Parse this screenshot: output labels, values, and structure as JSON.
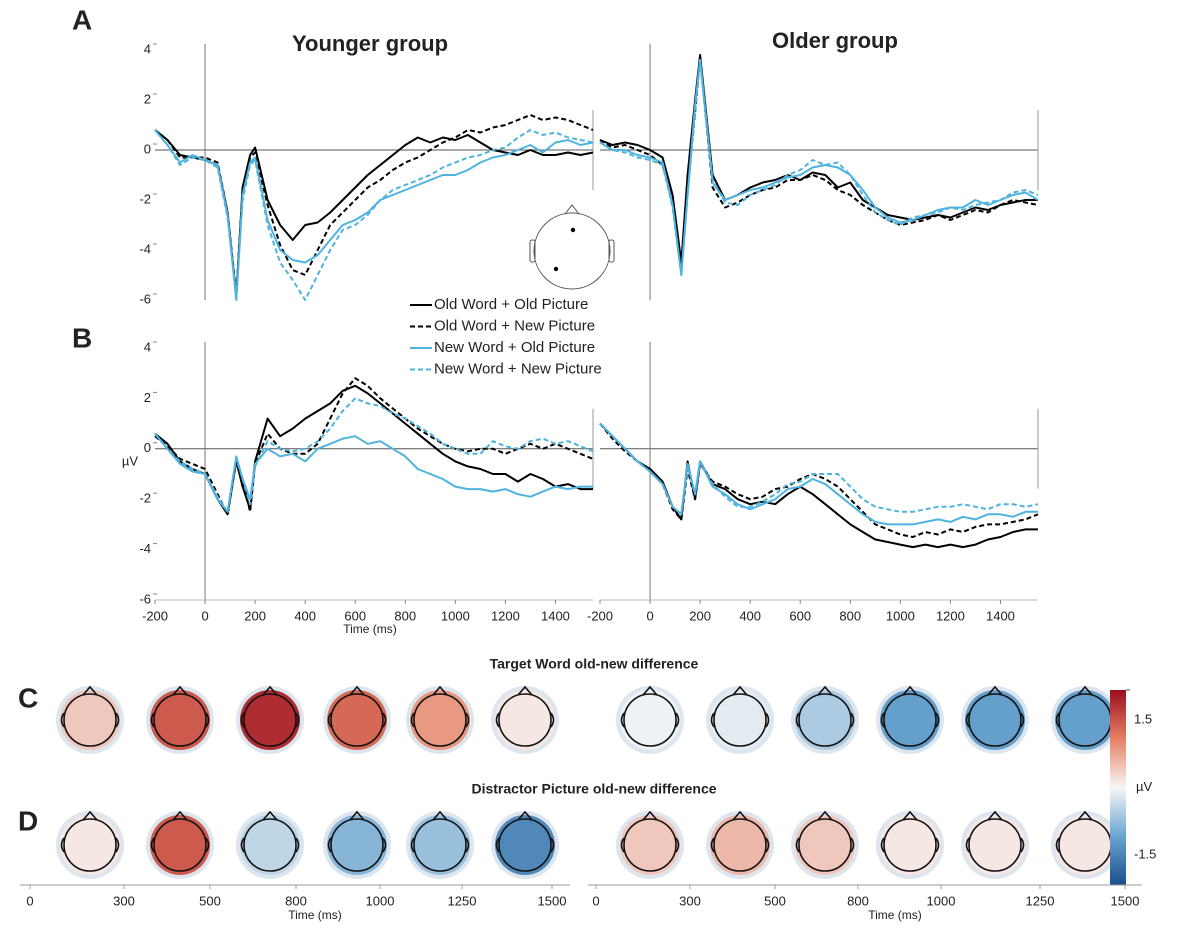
{
  "panel_labels": [
    "A",
    "B",
    "C",
    "D"
  ],
  "chart_data": [
    {
      "type": "line",
      "title": "Younger group",
      "x": [
        -200,
        -150,
        -100,
        -50,
        0,
        50,
        90,
        125,
        150,
        180,
        200,
        250,
        300,
        350,
        400,
        450,
        500,
        550,
        600,
        650,
        700,
        750,
        800,
        850,
        900,
        950,
        1000,
        1050,
        1100,
        1150,
        1200,
        1250,
        1300,
        1350,
        1400,
        1450,
        1500,
        1550
      ],
      "xlim": [
        -200,
        1550
      ],
      "ylim": [
        -6,
        4
      ],
      "yticks": [
        4,
        2,
        0,
        -2,
        -4,
        -6
      ],
      "series": [
        {
          "name": "Old Word + Old Picture",
          "color": "#000000",
          "dash": false,
          "values": [
            0.8,
            0.4,
            -0.2,
            -0.3,
            -0.4,
            -0.6,
            -2.5,
            -5.9,
            -1.5,
            -0.2,
            0.1,
            -2.0,
            -3.0,
            -3.6,
            -3.0,
            -2.9,
            -2.5,
            -2.0,
            -1.5,
            -1.0,
            -0.6,
            -0.2,
            0.2,
            0.5,
            0.3,
            0.5,
            0.4,
            0.6,
            0.3,
            0.0,
            -0.1,
            -0.2,
            0.0,
            -0.2,
            -0.2,
            -0.1,
            -0.2,
            -0.1
          ]
        },
        {
          "name": "Old Word + New Picture",
          "color": "#000000",
          "dash": true,
          "values": [
            0.8,
            0.4,
            -0.3,
            -0.3,
            -0.3,
            -0.5,
            -2.5,
            -5.8,
            -1.5,
            -0.3,
            -0.1,
            -2.2,
            -3.8,
            -4.8,
            -5.0,
            -4.0,
            -3.0,
            -2.5,
            -2.0,
            -1.5,
            -1.2,
            -0.8,
            -0.5,
            -0.3,
            0.0,
            0.3,
            0.5,
            0.8,
            0.7,
            0.9,
            1.0,
            1.2,
            1.4,
            1.2,
            1.3,
            1.2,
            1.0,
            0.8
          ]
        },
        {
          "name": "New Word + Old Picture",
          "color": "#4fb3e0",
          "dash": false,
          "values": [
            0.8,
            0.2,
            -0.5,
            -0.2,
            -0.4,
            -0.6,
            -2.6,
            -6.0,
            -1.8,
            -0.5,
            -0.3,
            -2.8,
            -4.0,
            -4.4,
            -4.5,
            -4.2,
            -3.6,
            -3.0,
            -2.8,
            -2.5,
            -2.0,
            -1.8,
            -1.6,
            -1.4,
            -1.2,
            -1.0,
            -1.0,
            -0.8,
            -0.5,
            -0.3,
            -0.2,
            0.0,
            0.2,
            -0.1,
            0.3,
            0.4,
            0.2,
            0.3
          ]
        },
        {
          "name": "New Word + New Picture",
          "color": "#4fb3e0",
          "dash": true,
          "values": [
            0.8,
            0.2,
            -0.6,
            -0.3,
            -0.4,
            -0.7,
            -2.7,
            -5.9,
            -2.0,
            -0.6,
            -0.4,
            -3.0,
            -4.5,
            -5.2,
            -6.0,
            -5.0,
            -4.0,
            -3.2,
            -3.0,
            -2.6,
            -2.0,
            -1.6,
            -1.4,
            -1.2,
            -1.0,
            -0.7,
            -0.5,
            -0.3,
            -0.2,
            0.0,
            0.1,
            0.5,
            0.8,
            0.6,
            0.7,
            0.5,
            0.4,
            0.3
          ]
        }
      ]
    },
    {
      "type": "line",
      "title": "Older group",
      "x": [
        -200,
        -150,
        -100,
        -50,
        0,
        50,
        90,
        125,
        150,
        180,
        200,
        250,
        300,
        350,
        400,
        450,
        500,
        550,
        600,
        650,
        700,
        750,
        800,
        850,
        900,
        950,
        1000,
        1050,
        1100,
        1150,
        1200,
        1250,
        1300,
        1350,
        1400,
        1450,
        1500,
        1550
      ],
      "xlim": [
        -200,
        1550
      ],
      "ylim": [
        -6,
        4
      ],
      "series": [
        {
          "color": "#000000",
          "dash": false,
          "values": [
            0.4,
            0.2,
            0.3,
            0.2,
            0.0,
            -0.3,
            -1.8,
            -4.5,
            -1.0,
            2.0,
            3.8,
            -1.0,
            -2.0,
            -1.8,
            -1.5,
            -1.3,
            -1.2,
            -1.0,
            -1.2,
            -0.9,
            -1.0,
            -1.5,
            -1.3,
            -2.0,
            -2.3,
            -2.6,
            -2.7,
            -2.8,
            -2.7,
            -2.6,
            -2.7,
            -2.5,
            -2.3,
            -2.4,
            -2.2,
            -2.1,
            -2.0,
            -2.0
          ]
        },
        {
          "color": "#000000",
          "dash": true,
          "values": [
            0.4,
            0.1,
            0.2,
            0.0,
            -0.2,
            -0.6,
            -2.0,
            -4.8,
            -1.5,
            1.5,
            3.7,
            -1.5,
            -2.3,
            -2.1,
            -1.8,
            -1.6,
            -1.5,
            -1.2,
            -1.2,
            -1.0,
            -1.2,
            -1.6,
            -1.8,
            -2.2,
            -2.5,
            -2.8,
            -3.0,
            -2.9,
            -2.8,
            -2.6,
            -2.8,
            -2.6,
            -2.4,
            -2.5,
            -2.2,
            -2.0,
            -2.1,
            -2.2
          ]
        },
        {
          "color": "#4fb3e0",
          "dash": false,
          "values": [
            0.3,
            0.0,
            0.0,
            -0.2,
            -0.3,
            -0.5,
            -2.2,
            -5.0,
            -1.8,
            1.8,
            3.6,
            -1.3,
            -2.0,
            -1.8,
            -1.6,
            -1.5,
            -1.3,
            -1.1,
            -1.0,
            -0.7,
            -0.6,
            -0.7,
            -1.0,
            -1.6,
            -2.3,
            -2.7,
            -2.9,
            -2.8,
            -2.6,
            -2.4,
            -2.3,
            -2.3,
            -2.0,
            -2.2,
            -2.0,
            -1.8,
            -1.7,
            -2.0
          ]
        },
        {
          "color": "#4fb3e0",
          "dash": true,
          "values": [
            0.3,
            0.0,
            -0.1,
            -0.3,
            -0.4,
            -0.6,
            -2.3,
            -5.0,
            -1.8,
            1.5,
            3.6,
            -1.2,
            -2.1,
            -2.2,
            -1.8,
            -1.6,
            -1.4,
            -1.0,
            -0.8,
            -0.4,
            -0.6,
            -0.5,
            -1.0,
            -1.8,
            -2.5,
            -2.8,
            -3.0,
            -2.7,
            -2.6,
            -2.5,
            -2.3,
            -2.4,
            -2.2,
            -2.1,
            -2.0,
            -1.7,
            -1.6,
            -1.8
          ]
        }
      ]
    },
    {
      "type": "line",
      "xlabel": "Time (ms)",
      "ylabel": "µV",
      "x": [
        -200,
        -150,
        -100,
        -50,
        0,
        50,
        90,
        125,
        150,
        180,
        200,
        250,
        300,
        350,
        400,
        450,
        500,
        550,
        600,
        650,
        700,
        750,
        800,
        850,
        900,
        950,
        1000,
        1050,
        1100,
        1150,
        1200,
        1250,
        1300,
        1350,
        1400,
        1450,
        1500,
        1550
      ],
      "xlim": [
        -200,
        1550
      ],
      "ylim": [
        -6,
        4
      ],
      "yticks": [
        4,
        2,
        0,
        -2,
        -4,
        -6
      ],
      "xticks": [
        -200,
        0,
        200,
        400,
        600,
        800,
        1000,
        1200,
        1400
      ],
      "series": [
        {
          "color": "#000000",
          "dash": false,
          "values": [
            0.6,
            0.2,
            -0.5,
            -0.8,
            -1.0,
            -2.0,
            -2.6,
            -0.5,
            -1.5,
            -2.4,
            -0.5,
            1.2,
            0.5,
            0.8,
            1.2,
            1.5,
            1.8,
            2.3,
            2.5,
            2.2,
            1.8,
            1.4,
            1.0,
            0.6,
            0.2,
            -0.2,
            -0.5,
            -0.7,
            -0.8,
            -1.0,
            -1.0,
            -1.3,
            -1.0,
            -1.2,
            -1.5,
            -1.4,
            -1.6,
            -1.6
          ]
        },
        {
          "color": "#000000",
          "dash": true,
          "values": [
            0.5,
            0.1,
            -0.4,
            -0.6,
            -0.8,
            -1.8,
            -2.6,
            -0.4,
            -1.2,
            -2.5,
            -0.6,
            0.6,
            0.0,
            -0.2,
            -0.2,
            0.2,
            1.2,
            2.2,
            2.8,
            2.5,
            2.0,
            1.6,
            1.2,
            0.8,
            0.5,
            0.2,
            0.0,
            -0.1,
            0.0,
            0.0,
            -0.2,
            0.0,
            0.2,
            0.0,
            0.2,
            0.0,
            -0.2,
            -0.4
          ]
        },
        {
          "color": "#4fb3e0",
          "dash": false,
          "values": [
            0.6,
            0.0,
            -0.6,
            -0.9,
            -1.0,
            -2.0,
            -2.5,
            -0.3,
            -1.2,
            -2.0,
            -0.6,
            0.0,
            -0.3,
            -0.2,
            -0.5,
            0.0,
            0.2,
            0.4,
            0.5,
            0.2,
            0.3,
            0.0,
            -0.3,
            -0.8,
            -1.0,
            -1.2,
            -1.5,
            -1.6,
            -1.6,
            -1.7,
            -1.6,
            -1.8,
            -1.9,
            -1.7,
            -1.5,
            -1.6,
            -1.5,
            -1.5
          ]
        },
        {
          "color": "#4fb3e0",
          "dash": true,
          "values": [
            0.6,
            0.0,
            -0.5,
            -0.8,
            -1.0,
            -1.9,
            -2.5,
            -0.4,
            -1.2,
            -2.2,
            -0.7,
            0.3,
            0.0,
            -0.1,
            0.0,
            0.3,
            0.8,
            1.5,
            2.0,
            1.8,
            1.7,
            1.4,
            1.2,
            0.9,
            0.6,
            0.2,
            0.0,
            -0.2,
            -0.2,
            0.3,
            0.1,
            0.0,
            0.3,
            0.4,
            0.2,
            0.3,
            0.1,
            -0.1
          ]
        }
      ]
    },
    {
      "type": "line",
      "x": [
        -200,
        -150,
        -100,
        -50,
        0,
        50,
        90,
        125,
        150,
        180,
        200,
        250,
        300,
        350,
        400,
        450,
        500,
        550,
        600,
        650,
        700,
        750,
        800,
        850,
        900,
        950,
        1000,
        1050,
        1100,
        1150,
        1200,
        1250,
        1300,
        1350,
        1400,
        1450,
        1500,
        1550
      ],
      "xlim": [
        -200,
        1550
      ],
      "ylim": [
        -6,
        4
      ],
      "xticks": [
        -200,
        0,
        200,
        400,
        600,
        800,
        1000,
        1200,
        1400
      ],
      "series": [
        {
          "color": "#000000",
          "dash": false,
          "values": [
            1.0,
            0.5,
            0.0,
            -0.5,
            -0.8,
            -1.3,
            -2.3,
            -2.8,
            -0.5,
            -2.0,
            -0.5,
            -1.4,
            -1.6,
            -2.0,
            -2.2,
            -2.1,
            -2.2,
            -1.8,
            -1.5,
            -1.8,
            -2.2,
            -2.6,
            -3.0,
            -3.3,
            -3.6,
            -3.7,
            -3.8,
            -3.9,
            -3.8,
            -3.9,
            -3.8,
            -3.9,
            -3.8,
            -3.6,
            -3.5,
            -3.3,
            -3.2,
            -3.2
          ]
        },
        {
          "color": "#000000",
          "dash": true,
          "values": [
            1.0,
            0.4,
            -0.1,
            -0.5,
            -0.9,
            -1.4,
            -2.4,
            -2.8,
            -0.8,
            -2.0,
            -0.6,
            -1.3,
            -1.5,
            -1.8,
            -2.0,
            -1.9,
            -1.6,
            -1.5,
            -1.2,
            -1.0,
            -1.2,
            -1.5,
            -2.0,
            -2.5,
            -3.0,
            -3.2,
            -3.4,
            -3.5,
            -3.3,
            -3.4,
            -3.2,
            -3.3,
            -3.1,
            -3.0,
            -3.0,
            -2.9,
            -2.8,
            -2.6
          ]
        },
        {
          "color": "#4fb3e0",
          "dash": false,
          "values": [
            1.0,
            0.5,
            0.0,
            -0.5,
            -0.9,
            -1.4,
            -2.3,
            -2.6,
            -0.6,
            -1.8,
            -0.5,
            -1.5,
            -1.8,
            -2.2,
            -2.4,
            -2.2,
            -2.0,
            -1.6,
            -1.5,
            -1.2,
            -1.4,
            -1.8,
            -2.2,
            -2.6,
            -2.9,
            -3.0,
            -3.0,
            -3.0,
            -2.9,
            -2.8,
            -2.9,
            -2.7,
            -2.8,
            -2.6,
            -2.6,
            -2.7,
            -2.5,
            -2.5
          ]
        },
        {
          "color": "#4fb3e0",
          "dash": true,
          "values": [
            1.0,
            0.5,
            0.0,
            -0.5,
            -0.9,
            -1.4,
            -2.3,
            -2.6,
            -0.7,
            -1.8,
            -0.5,
            -1.4,
            -1.9,
            -2.3,
            -2.3,
            -2.1,
            -1.8,
            -1.4,
            -1.3,
            -1.0,
            -1.0,
            -1.0,
            -1.5,
            -2.0,
            -2.3,
            -2.4,
            -2.5,
            -2.5,
            -2.4,
            -2.3,
            -2.3,
            -2.2,
            -2.3,
            -2.4,
            -2.2,
            -2.2,
            -2.3,
            -2.2
          ]
        }
      ]
    }
  ],
  "topomaps": {
    "clim": [
      -1.5,
      1.5
    ],
    "cticks": [
      1.5,
      -1.5
    ],
    "unit": "µV",
    "rows": [
      {
        "title": "Target Word old-new difference",
        "younger": [
          0.3,
          1.0,
          1.3,
          0.9,
          0.6,
          0.1
        ],
        "older": [
          -0.05,
          -0.1,
          -0.4,
          -0.8,
          -0.8,
          -0.8
        ]
      },
      {
        "title": "Distractor Picture old-new difference",
        "younger": [
          0.1,
          1.0,
          -0.3,
          -0.6,
          -0.5,
          -1.0
        ],
        "older": [
          0.3,
          0.4,
          0.3,
          0.1,
          0.1,
          0.1
        ]
      }
    ],
    "time_axes": [
      {
        "ticks": [
          0,
          300,
          500,
          800,
          1000,
          1250,
          1500
        ],
        "xlabel": "Time (ms)"
      },
      {
        "ticks": [
          0,
          300,
          500,
          800,
          1000,
          1250,
          1500
        ],
        "xlabel": "Time (ms)"
      }
    ]
  }
}
